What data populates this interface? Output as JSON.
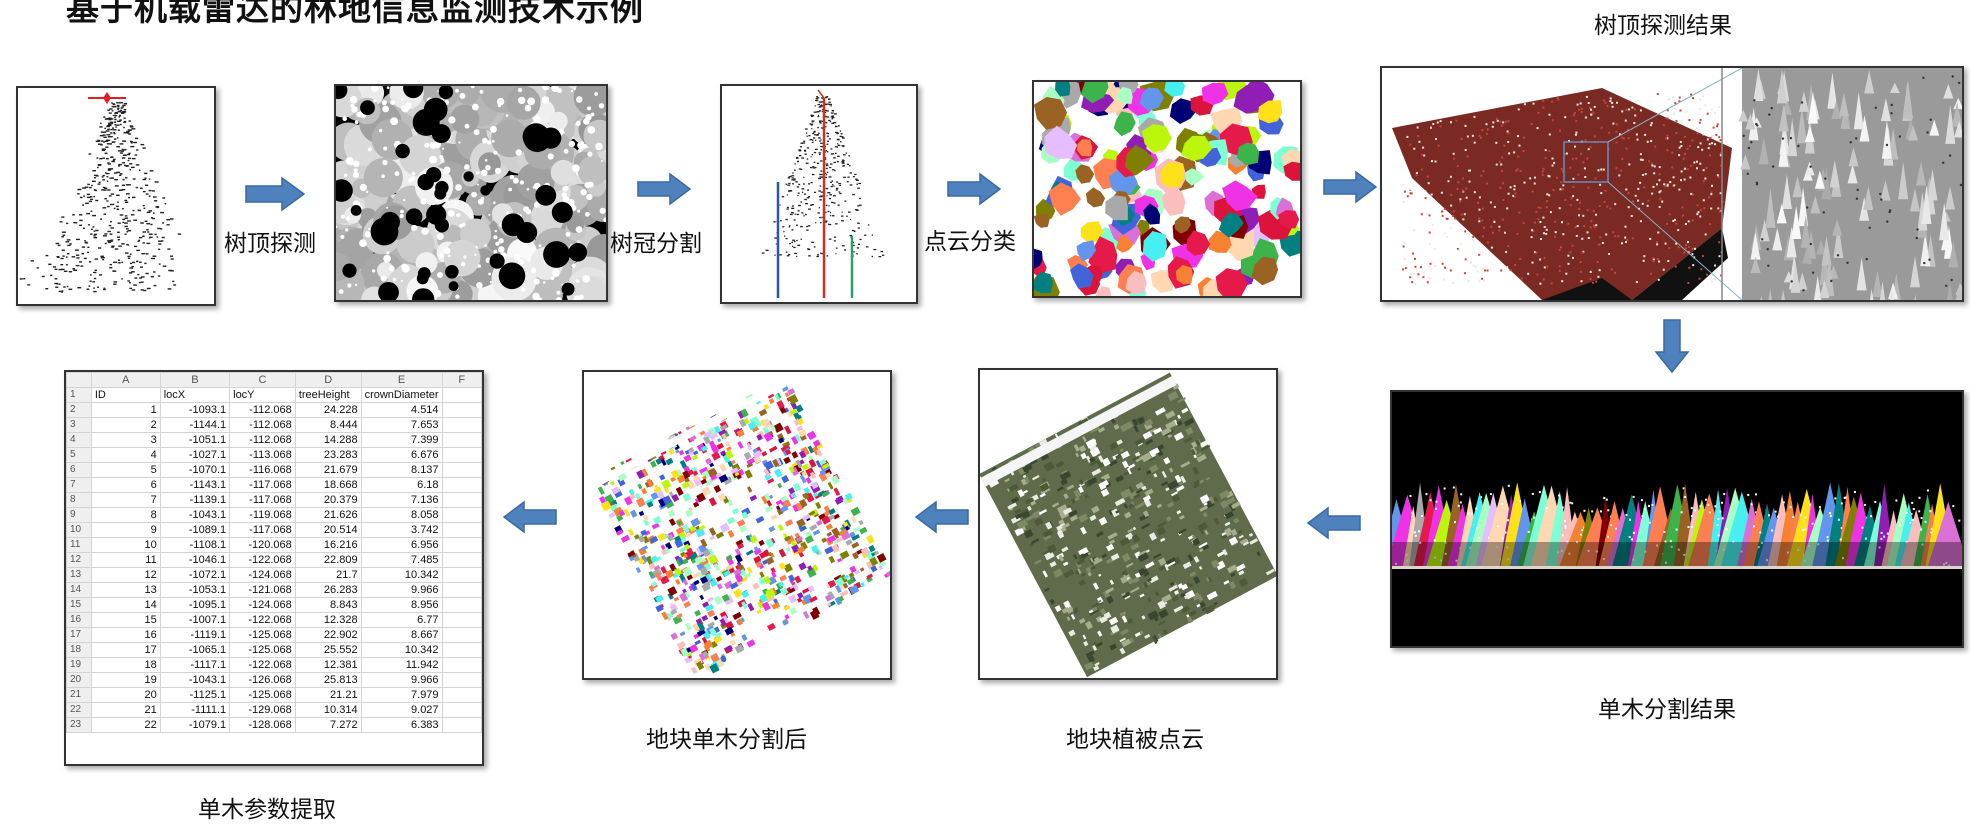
{
  "title": "基于机载雷达的林地信息监测技术示例",
  "labels": {
    "tree_top_detection": "树顶探测",
    "crown_segmentation": "树冠分割",
    "point_classification": "点云分类",
    "tree_top_result": "树顶探测结果",
    "single_tree_result": "单木分割结果",
    "plot_vegetation": "地块植被点云",
    "plot_after_segmentation": "地块单木分割后",
    "parameter_extraction": "单木参数提取"
  },
  "colors": {
    "arrow": "#4f81bd",
    "arrow_edge": "#3a6aa5"
  },
  "sheet": {
    "col_letters": [
      "A",
      "B",
      "C",
      "D",
      "E",
      "F"
    ],
    "headers": [
      "ID",
      "locX",
      "locY",
      "treeHeight",
      "crownDiameter",
      ""
    ],
    "rows": [
      [
        "1",
        "-1093.1",
        "-112.068",
        "24.228",
        "4.514"
      ],
      [
        "2",
        "-1144.1",
        "-112.068",
        "8.444",
        "7.653"
      ],
      [
        "3",
        "-1051.1",
        "-112.068",
        "14.288",
        "7.399"
      ],
      [
        "4",
        "-1027.1",
        "-113.068",
        "23.283",
        "6.676"
      ],
      [
        "5",
        "-1070.1",
        "-116.068",
        "21.679",
        "8.137"
      ],
      [
        "6",
        "-1143.1",
        "-117.068",
        "18.668",
        "6.18"
      ],
      [
        "7",
        "-1139.1",
        "-117.068",
        "20.379",
        "7.136"
      ],
      [
        "8",
        "-1043.1",
        "-119.068",
        "21.626",
        "8.058"
      ],
      [
        "9",
        "-1089.1",
        "-117.068",
        "20.514",
        "3.742"
      ],
      [
        "10",
        "-1108.1",
        "-120.068",
        "16.216",
        "6.956"
      ],
      [
        "11",
        "-1046.1",
        "-122.068",
        "22.809",
        "7.485"
      ],
      [
        "12",
        "-1072.1",
        "-124.068",
        "21.7",
        "10.342"
      ],
      [
        "13",
        "-1053.1",
        "-121.068",
        "26.283",
        "9.966"
      ],
      [
        "14",
        "-1095.1",
        "-124.068",
        "8.843",
        "8.956"
      ],
      [
        "15",
        "-1007.1",
        "-122.068",
        "12.328",
        "6.77"
      ],
      [
        "16",
        "-1119.1",
        "-125.068",
        "22.902",
        "8.667"
      ],
      [
        "17",
        "-1065.1",
        "-125.068",
        "25.552",
        "10.342"
      ],
      [
        "18",
        "-1117.1",
        "-122.068",
        "12.381",
        "11.942"
      ],
      [
        "19",
        "-1043.1",
        "-126.068",
        "25.813",
        "9.966"
      ],
      [
        "20",
        "-1125.1",
        "-125.068",
        "21.21",
        "7.979"
      ],
      [
        "21",
        "-1111.1",
        "-129.068",
        "10.314",
        "9.027"
      ],
      [
        "22",
        "-1079.1",
        "-128.068",
        "7.272",
        "6.383"
      ]
    ]
  }
}
